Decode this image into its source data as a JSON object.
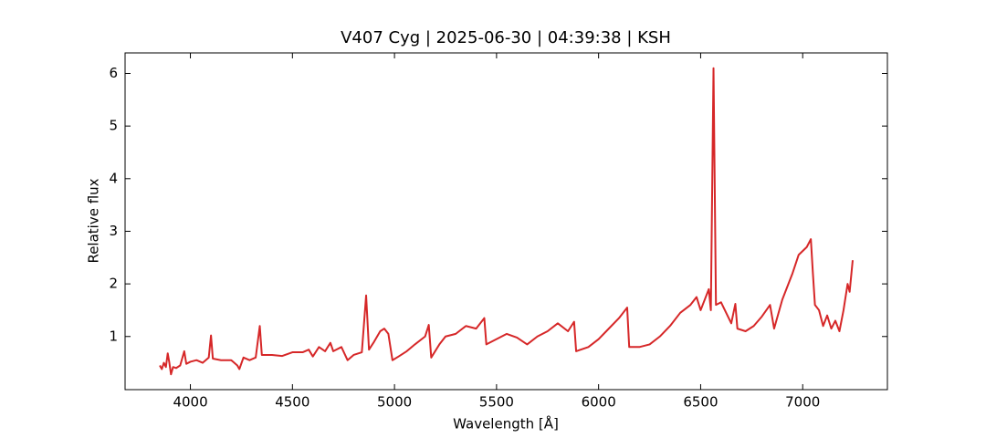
{
  "chart_data": {
    "type": "line",
    "title": "V407 Cyg | 2025-06-30 | 04:39:38 | KSH",
    "xlabel": "Wavelength [Å]",
    "ylabel": "Relative flux",
    "xlim": [
      3680,
      7415
    ],
    "ylim": [
      -0.01,
      6.39
    ],
    "xticks": [
      4000,
      4500,
      5000,
      5500,
      6000,
      6500,
      7000
    ],
    "yticks": [
      1,
      2,
      3,
      4,
      5,
      6
    ],
    "series": [
      {
        "color": "#d62728",
        "x": [
          3850,
          3860,
          3870,
          3880,
          3889,
          3897,
          3905,
          3915,
          3930,
          3950,
          3970,
          3980,
          4000,
          4030,
          4060,
          4090,
          4101,
          4110,
          4150,
          4200,
          4230,
          4240,
          4260,
          4290,
          4320,
          4340,
          4350,
          4400,
          4450,
          4500,
          4550,
          4580,
          4600,
          4630,
          4660,
          4686,
          4700,
          4740,
          4770,
          4800,
          4840,
          4861,
          4875,
          4900,
          4930,
          4950,
          4970,
          4990,
          5020,
          5060,
          5100,
          5150,
          5168,
          5180,
          5220,
          5250,
          5300,
          5350,
          5400,
          5440,
          5450,
          5500,
          5550,
          5600,
          5650,
          5700,
          5750,
          5800,
          5850,
          5880,
          5890,
          5950,
          6000,
          6050,
          6100,
          6140,
          6150,
          6200,
          6250,
          6300,
          6350,
          6400,
          6450,
          6480,
          6500,
          6540,
          6550,
          6563,
          6575,
          6600,
          6650,
          6670,
          6680,
          6720,
          6760,
          6800,
          6840,
          6860,
          6900,
          6950,
          6980,
          7020,
          7040,
          7050,
          7060,
          7080,
          7100,
          7120,
          7140,
          7160,
          7180,
          7200,
          7220,
          7230,
          7245
        ],
        "values": [
          0.45,
          0.38,
          0.5,
          0.42,
          0.68,
          0.5,
          0.28,
          0.42,
          0.4,
          0.45,
          0.72,
          0.48,
          0.52,
          0.55,
          0.5,
          0.6,
          1.02,
          0.58,
          0.55,
          0.55,
          0.45,
          0.38,
          0.6,
          0.55,
          0.6,
          1.2,
          0.65,
          0.65,
          0.63,
          0.7,
          0.7,
          0.75,
          0.62,
          0.8,
          0.72,
          0.88,
          0.72,
          0.8,
          0.55,
          0.65,
          0.7,
          1.78,
          0.75,
          0.9,
          1.1,
          1.15,
          1.05,
          0.55,
          0.62,
          0.72,
          0.85,
          1.0,
          1.22,
          0.6,
          0.85,
          1.0,
          1.05,
          1.2,
          1.15,
          1.35,
          0.85,
          0.95,
          1.05,
          0.98,
          0.85,
          1.0,
          1.1,
          1.25,
          1.1,
          1.28,
          0.72,
          0.8,
          0.95,
          1.15,
          1.35,
          1.55,
          0.8,
          0.8,
          0.85,
          1.0,
          1.2,
          1.45,
          1.6,
          1.75,
          1.5,
          1.9,
          1.5,
          6.1,
          1.6,
          1.65,
          1.25,
          1.62,
          1.15,
          1.1,
          1.2,
          1.38,
          1.6,
          1.15,
          1.7,
          2.2,
          2.55,
          2.7,
          2.85,
          2.2,
          1.6,
          1.5,
          1.2,
          1.4,
          1.15,
          1.3,
          1.1,
          1.5,
          2.0,
          1.85,
          2.45
        ]
      }
    ]
  }
}
